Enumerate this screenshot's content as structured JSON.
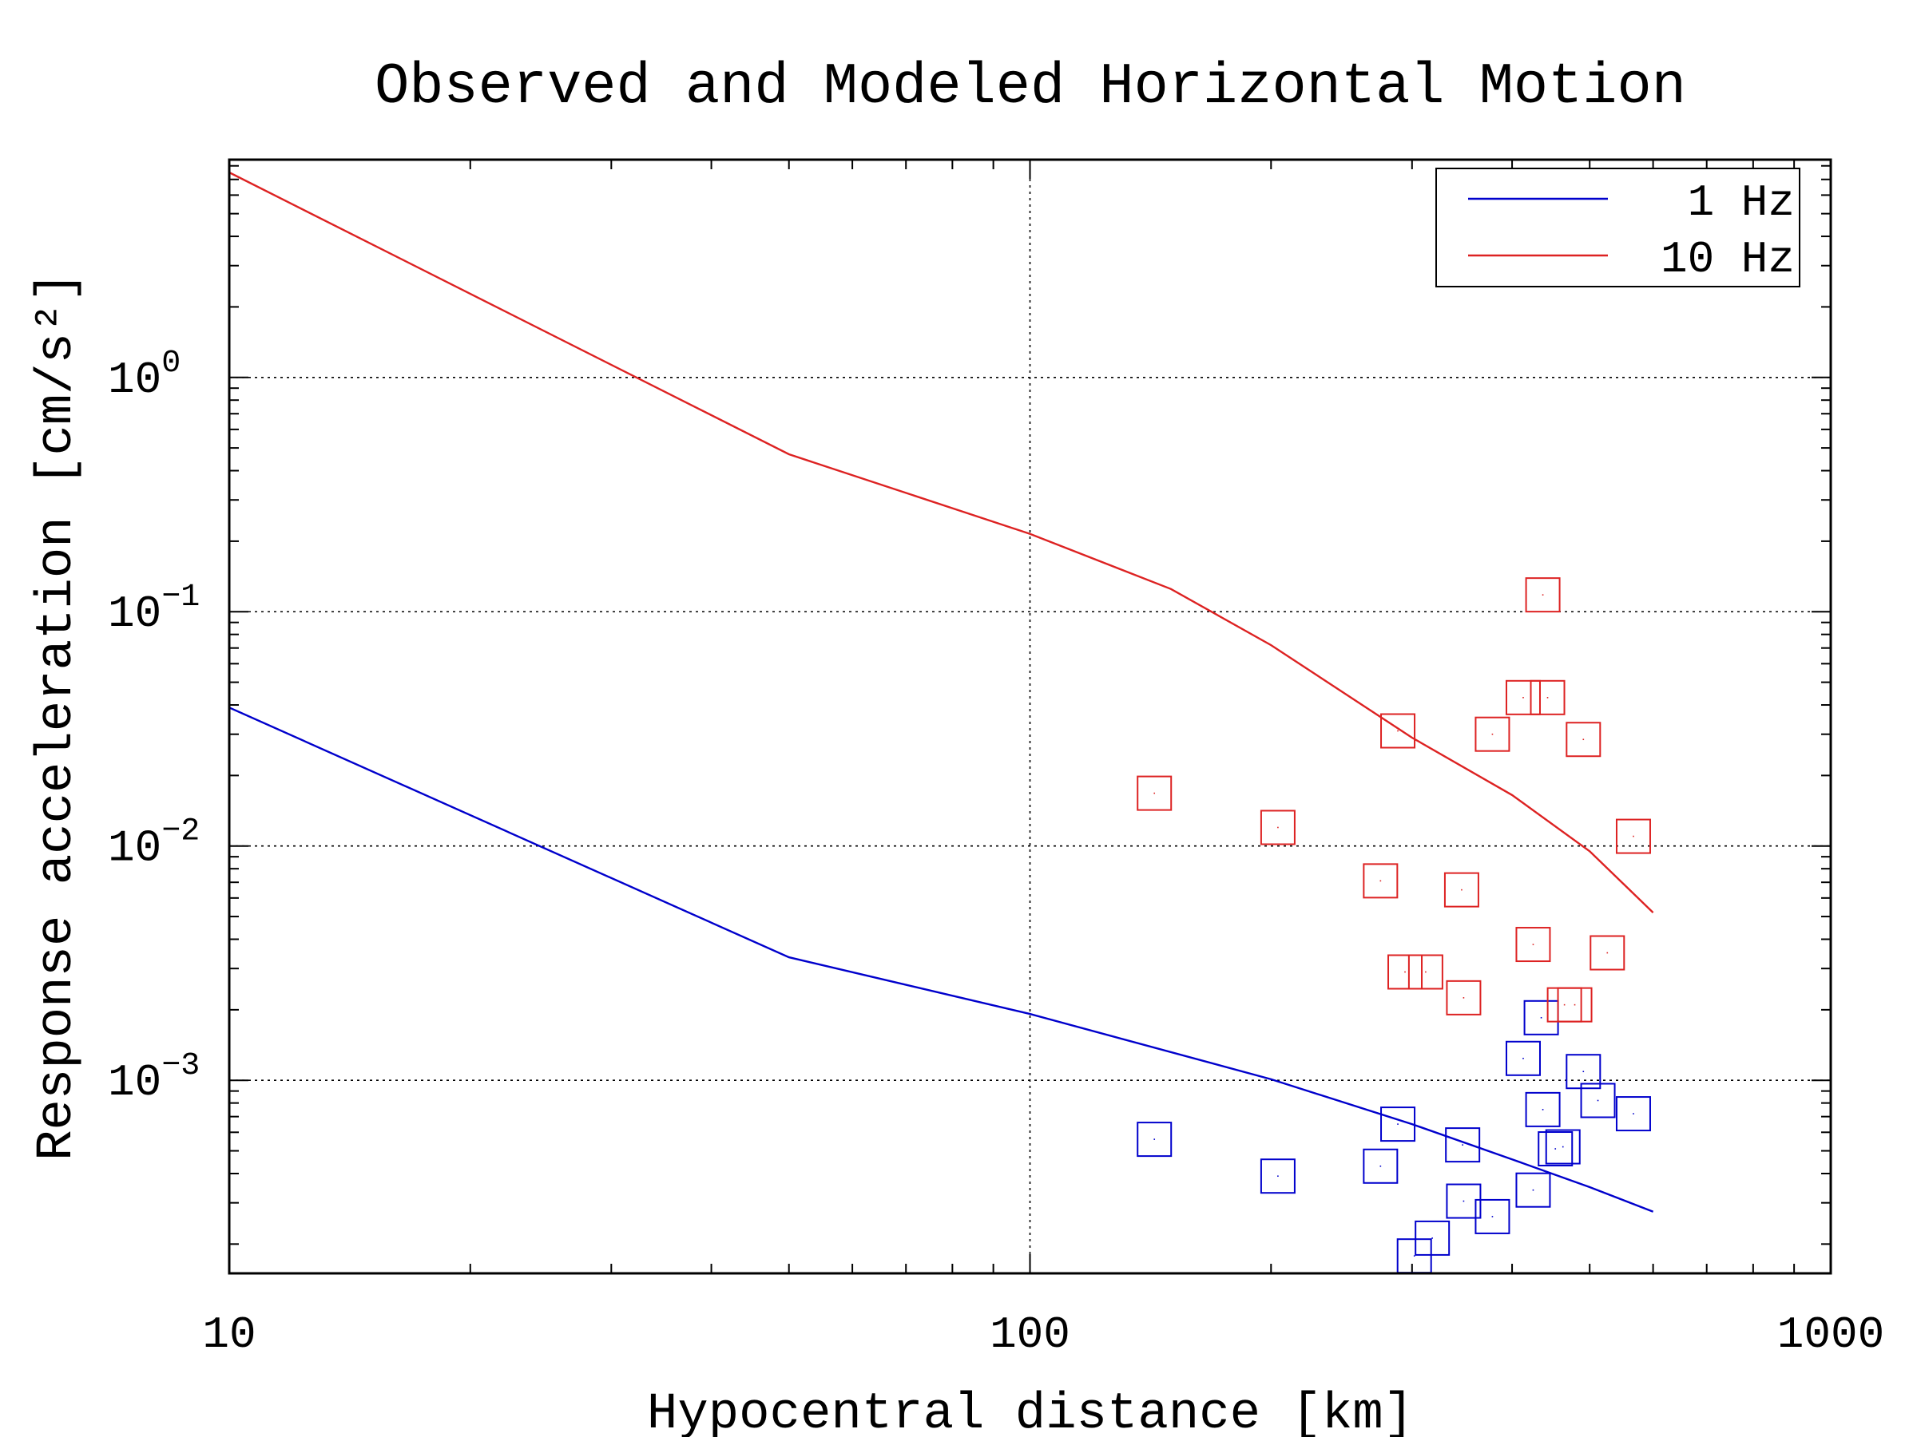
{
  "chart_data": {
    "type": "scatter",
    "title": "Observed and Modeled Horizontal Motion",
    "xlabel": "Hypocentral distance [km]",
    "ylabel": "Response acceleration [cm/s²]",
    "xscale": "log",
    "yscale": "log",
    "xlim": [
      10,
      1000
    ],
    "ylim": [
      0.00015,
      8.5
    ],
    "grid": true,
    "legend_position": "top-right",
    "x_ticks": [
      {
        "value": 10,
        "label": "10"
      },
      {
        "value": 100,
        "label": "100"
      },
      {
        "value": 1000,
        "label": "1000"
      }
    ],
    "y_ticks": [
      {
        "value": 1,
        "base": "10",
        "exp": "0"
      },
      {
        "value": 0.1,
        "base": "10",
        "exp": "−1"
      },
      {
        "value": 0.01,
        "base": "10",
        "exp": "−2"
      },
      {
        "value": 0.001,
        "base": "10",
        "exp": "−3"
      }
    ],
    "series": [
      {
        "name": "1 Hz",
        "color": "#0000cc",
        "kind": "line",
        "x": [
          10,
          50,
          100,
          200,
          300,
          400,
          500,
          600
        ],
        "y": [
          0.039,
          0.00335,
          0.00192,
          0.00101,
          0.00065,
          0.00046,
          0.00035,
          0.000275
        ]
      },
      {
        "name": "10 Hz",
        "color": "#dd2222",
        "kind": "line",
        "x": [
          10,
          50,
          100,
          150,
          200,
          300,
          400,
          500,
          600
        ],
        "y": [
          7.5,
          0.47,
          0.215,
          0.125,
          0.072,
          0.029,
          0.0165,
          0.0095,
          0.0052
        ]
      },
      {
        "name": "",
        "color": "#0000cc",
        "kind": "scatter",
        "marker": "square",
        "x": [
          143,
          204,
          274,
          288,
          302,
          318,
          347,
          348,
          378,
          413,
          425,
          435,
          437,
          453,
          463,
          491,
          512,
          567
        ],
        "y": [
          0.00056,
          0.00039,
          0.00043,
          0.00065,
          0.000178,
          0.000212,
          0.00053,
          0.000305,
          0.000262,
          0.00124,
          0.00034,
          0.00185,
          0.00075,
          0.00051,
          0.00052,
          0.00109,
          0.00082,
          0.00072
        ]
      },
      {
        "name": "",
        "color": "#dd2222",
        "kind": "scatter",
        "marker": "square",
        "x": [
          143,
          204,
          274,
          288,
          294,
          312,
          346,
          348,
          378,
          413,
          425,
          437,
          443,
          465,
          479,
          491,
          526,
          567
        ],
        "y": [
          0.0168,
          0.012,
          0.0071,
          0.031,
          0.0029,
          0.0029,
          0.0065,
          0.00225,
          0.03,
          0.043,
          0.0038,
          0.118,
          0.043,
          0.0021,
          0.0021,
          0.0285,
          0.0035,
          0.011
        ]
      }
    ]
  }
}
